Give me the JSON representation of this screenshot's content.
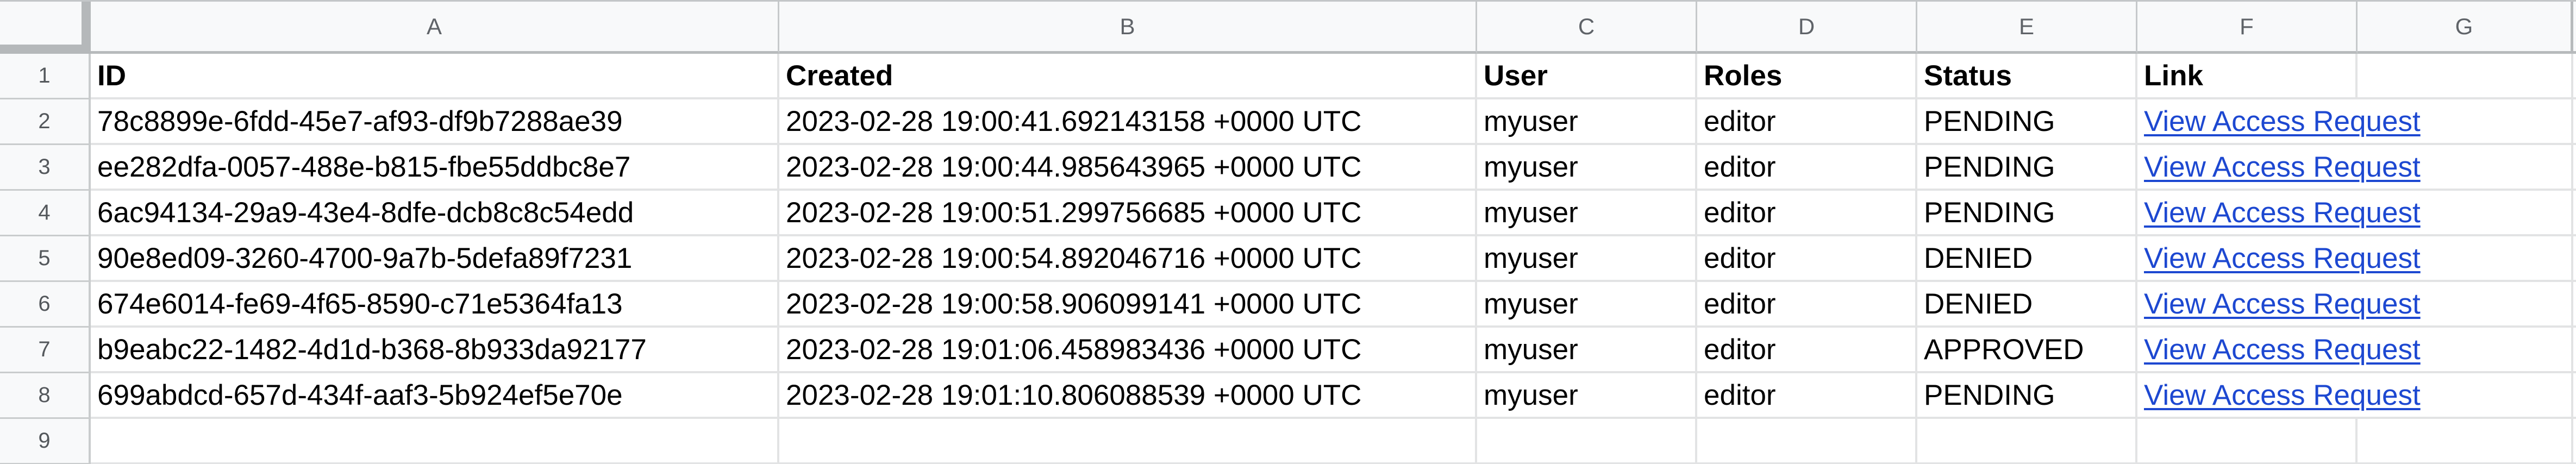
{
  "grid": {
    "column_letters": [
      "A",
      "B",
      "C",
      "D",
      "E",
      "F",
      "G"
    ],
    "row_numbers": [
      "1",
      "2",
      "3",
      "4",
      "5",
      "6",
      "7",
      "8",
      "9"
    ],
    "columns": [
      "ID",
      "Created",
      "User",
      "Roles",
      "Status",
      "Link"
    ],
    "rows": [
      {
        "id": "78c8899e-6fdd-45e7-af93-df9b7288ae39",
        "created": "2023-02-28 19:00:41.692143158 +0000 UTC",
        "user": "myuser",
        "roles": "editor",
        "status": "PENDING",
        "link": "View Access Request"
      },
      {
        "id": "ee282dfa-0057-488e-b815-fbe55ddbc8e7",
        "created": "2023-02-28 19:00:44.985643965 +0000 UTC",
        "user": "myuser",
        "roles": "editor",
        "status": "PENDING",
        "link": "View Access Request"
      },
      {
        "id": "6ac94134-29a9-43e4-8dfe-dcb8c8c54edd",
        "created": "2023-02-28 19:00:51.299756685 +0000 UTC",
        "user": "myuser",
        "roles": "editor",
        "status": "PENDING",
        "link": "View Access Request"
      },
      {
        "id": "90e8ed09-3260-4700-9a7b-5defa89f7231",
        "created": "2023-02-28 19:00:54.892046716 +0000 UTC",
        "user": "myuser",
        "roles": "editor",
        "status": "DENIED",
        "link": "View Access Request"
      },
      {
        "id": "674e6014-fe69-4f65-8590-c71e5364fa13",
        "created": "2023-02-28 19:00:58.906099141 +0000 UTC",
        "user": "myuser",
        "roles": "editor",
        "status": "DENIED",
        "link": "View Access Request"
      },
      {
        "id": "b9eabc22-1482-4d1d-b368-8b933da92177",
        "created": "2023-02-28 19:01:06.458983436 +0000 UTC",
        "user": "myuser",
        "roles": "editor",
        "status": "APPROVED",
        "link": "View Access Request"
      },
      {
        "id": "699abdcd-657d-434f-aaf3-5b924ef5e70e",
        "created": "2023-02-28 19:01:10.806088539 +0000 UTC",
        "user": "myuser",
        "roles": "editor",
        "status": "PENDING",
        "link": "View Access Request"
      }
    ],
    "colors": {
      "link_blue": "#1d48d1",
      "chrome_background": "#f8f9fa",
      "chrome_text": "#5f6368",
      "chrome_border": "#b7babc",
      "gridline": "#e2e3e4",
      "header_text": "#000000"
    }
  }
}
